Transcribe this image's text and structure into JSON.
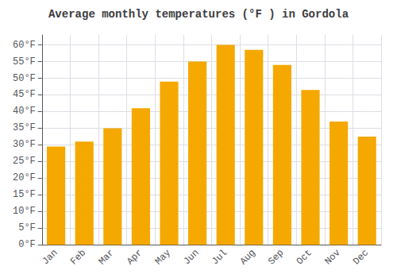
{
  "chart_data": {
    "type": "bar",
    "title": "Average monthly temperatures (°F ) in Gordola",
    "categories": [
      "Jan",
      "Feb",
      "Mar",
      "Apr",
      "May",
      "Jun",
      "Jul",
      "Aug",
      "Sep",
      "Oct",
      "Nov",
      "Dec"
    ],
    "values": [
      29.5,
      31.0,
      35.0,
      41.0,
      49.0,
      55.0,
      60.0,
      58.5,
      54.0,
      46.5,
      37.0,
      32.5
    ],
    "color": "#F5A800",
    "ylim": [
      0,
      63
    ],
    "yticks": [
      {
        "value": 0,
        "label": "0°F"
      },
      {
        "value": 5,
        "label": "5°F"
      },
      {
        "value": 10,
        "label": "10°F"
      },
      {
        "value": 15,
        "label": "15°F"
      },
      {
        "value": 20,
        "label": "20°F"
      },
      {
        "value": 25,
        "label": "25°F"
      },
      {
        "value": 30,
        "label": "30°F"
      },
      {
        "value": 35,
        "label": "35°F"
      },
      {
        "value": 40,
        "label": "40°F"
      },
      {
        "value": 45,
        "label": "45°F"
      },
      {
        "value": 50,
        "label": "50°F"
      },
      {
        "value": 55,
        "label": "55°F"
      },
      {
        "value": 60,
        "label": "60°F"
      }
    ],
    "grid": true
  }
}
